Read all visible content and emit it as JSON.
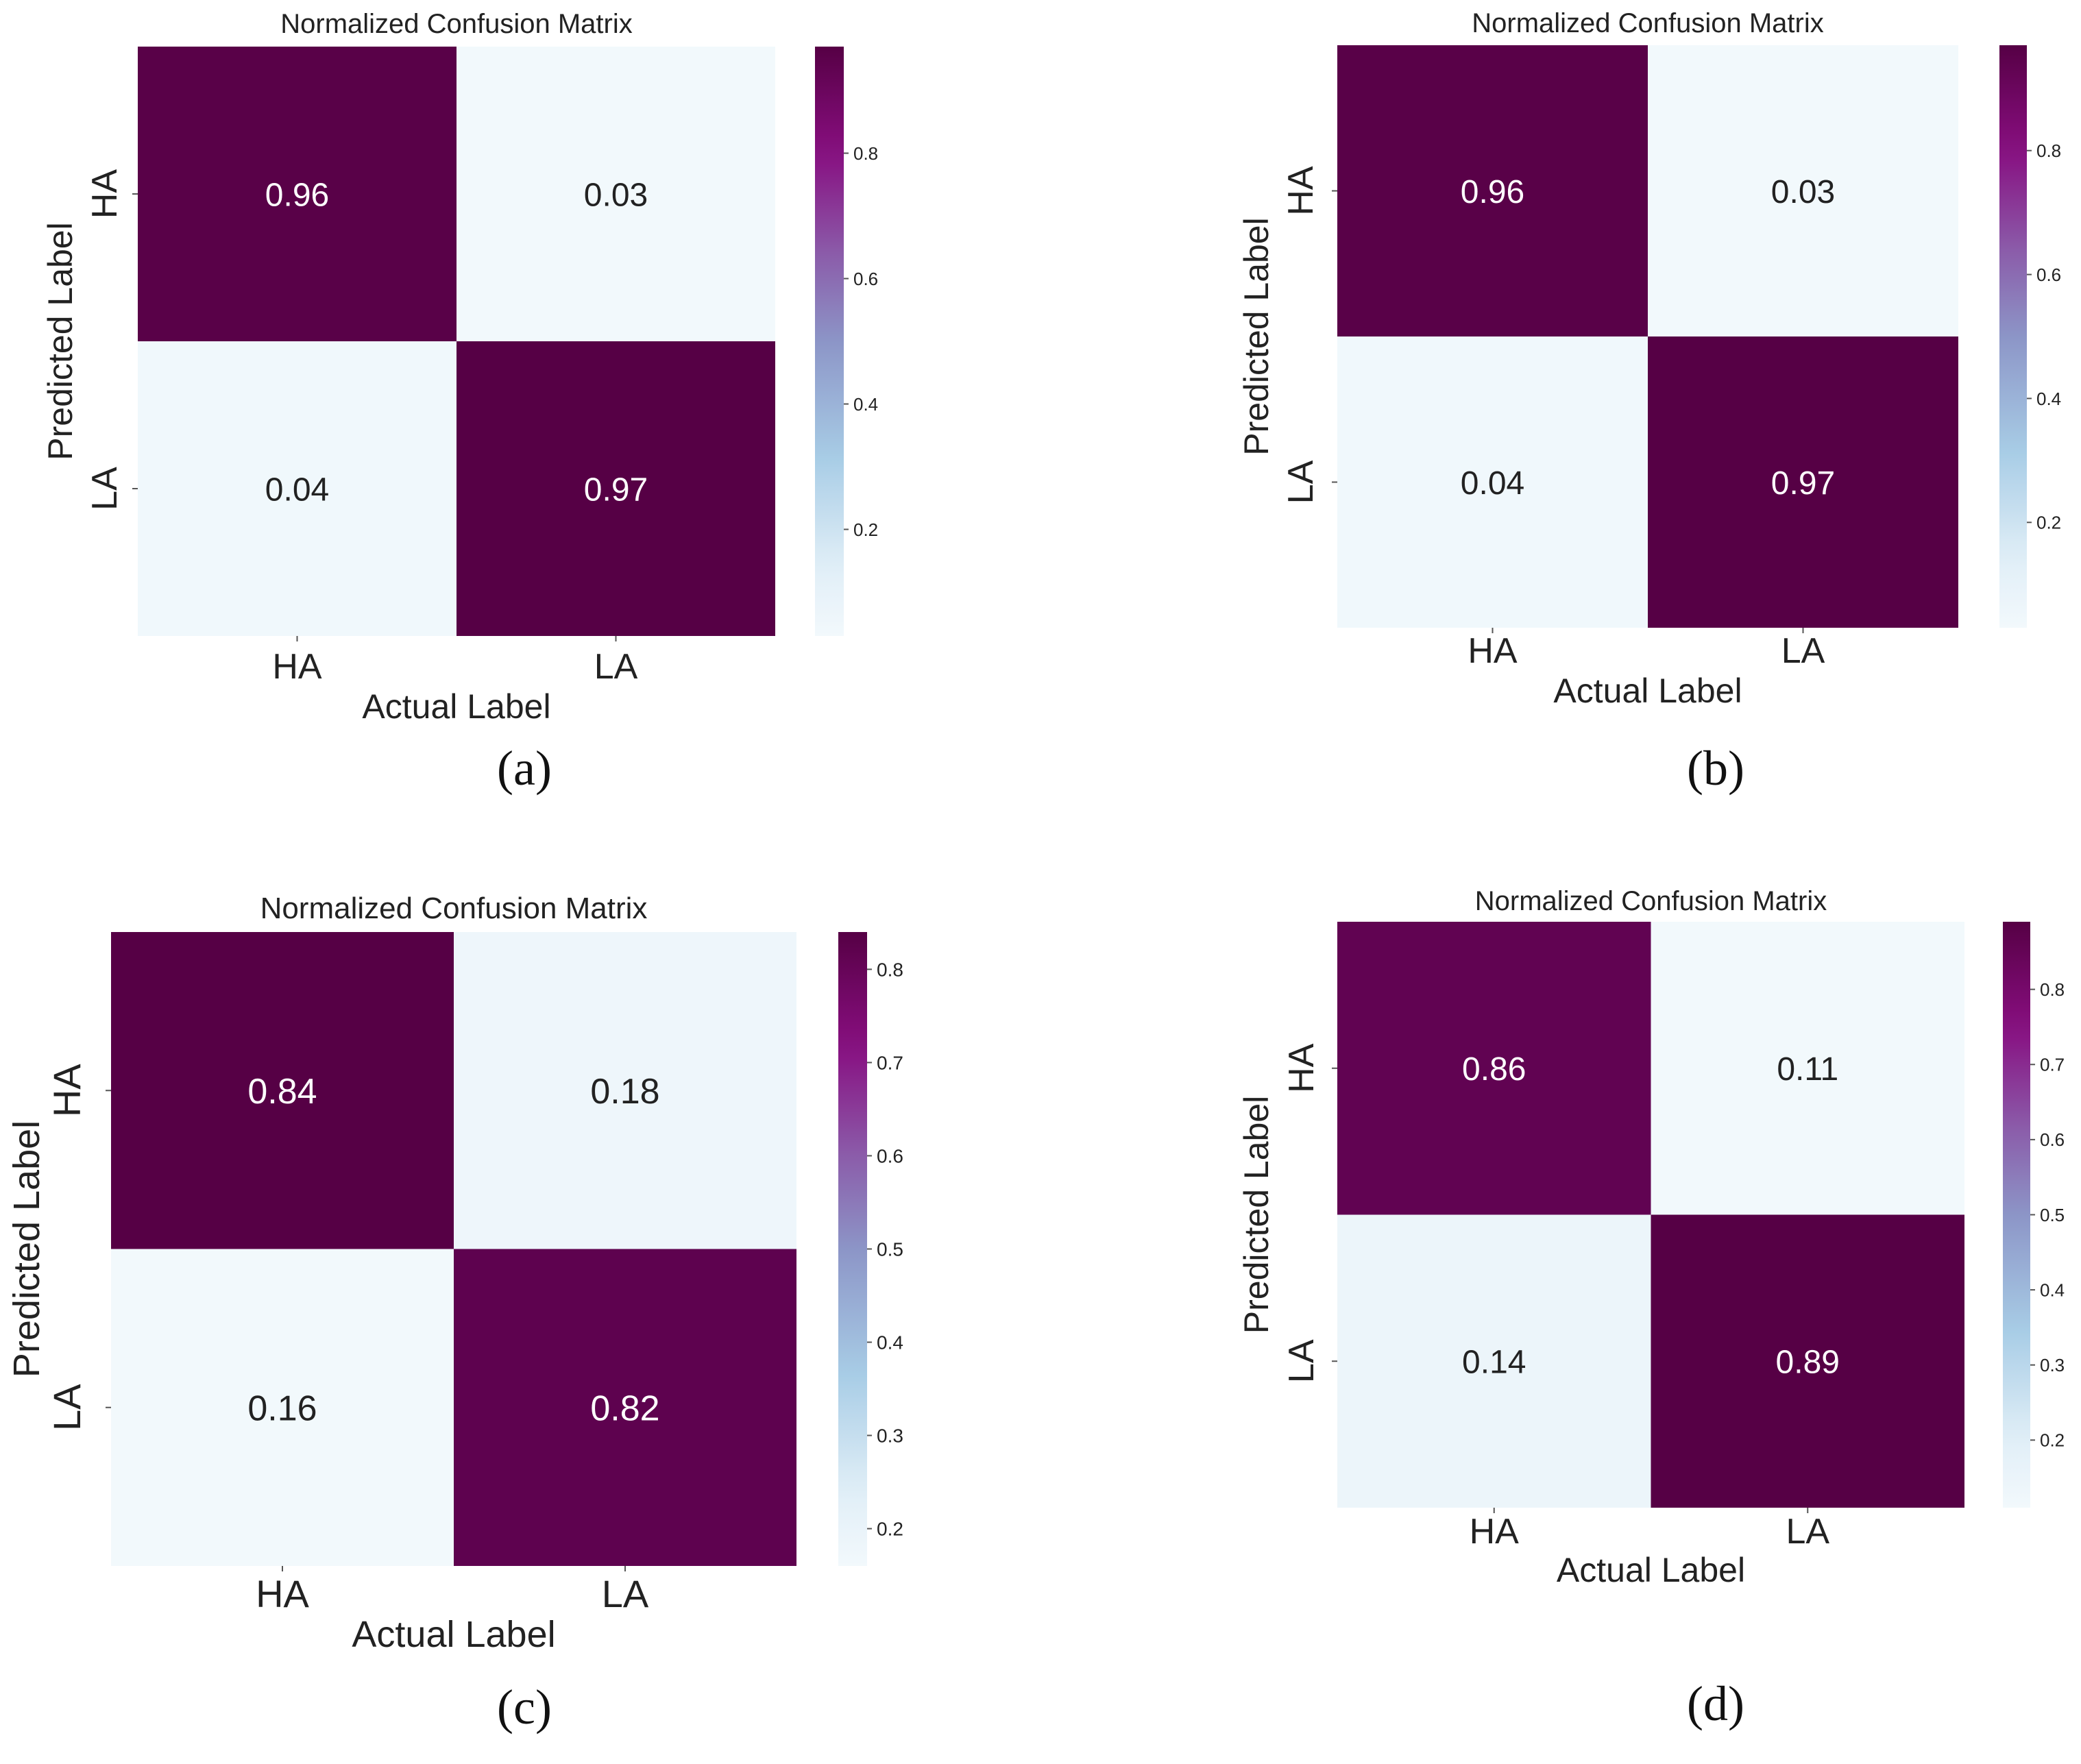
{
  "figure": {
    "colorscale": [
      {
        "t": 0.0,
        "color": "#f2f9fc"
      },
      {
        "t": 0.12,
        "color": "#e0eef7"
      },
      {
        "t": 0.3,
        "color": "#a8cde6"
      },
      {
        "t": 0.5,
        "color": "#8c95c7"
      },
      {
        "t": 0.65,
        "color": "#8b5ba9"
      },
      {
        "t": 0.82,
        "color": "#880e80"
      },
      {
        "t": 1.0,
        "color": "#560045"
      }
    ],
    "text_dark": "#222222",
    "text_light": "#ffffff"
  },
  "chart_data": [
    {
      "type": "heatmap",
      "panel": "(a)",
      "title": "Normalized Confusion Matrix",
      "xlabel": "Actual Label",
      "ylabel": "Predicted Label",
      "x_categories": [
        "HA",
        "LA"
      ],
      "y_categories": [
        "HA",
        "LA"
      ],
      "values": [
        [
          0.96,
          0.03
        ],
        [
          0.04,
          0.97
        ]
      ],
      "colorbar": {
        "range": [
          0.03,
          0.97
        ],
        "ticks": [
          0.2,
          0.4,
          0.6,
          0.8
        ],
        "tick_labels": [
          "0.2",
          "0.4",
          "0.6",
          "0.8"
        ]
      }
    },
    {
      "type": "heatmap",
      "panel": "(b)",
      "title": "Normalized Confusion Matrix",
      "xlabel": "Actual Label",
      "ylabel": "Predicted Label",
      "x_categories": [
        "HA",
        "LA"
      ],
      "y_categories": [
        "HA",
        "LA"
      ],
      "values": [
        [
          0.96,
          0.03
        ],
        [
          0.04,
          0.97
        ]
      ],
      "colorbar": {
        "range": [
          0.03,
          0.97
        ],
        "ticks": [
          0.2,
          0.4,
          0.6,
          0.8
        ],
        "tick_labels": [
          "0.2",
          "0.4",
          "0.6",
          "0.8"
        ]
      }
    },
    {
      "type": "heatmap",
      "panel": "(c)",
      "title": "Normalized Confusion Matrix",
      "xlabel": "Actual Label",
      "ylabel": "Predicted Label",
      "x_categories": [
        "HA",
        "LA"
      ],
      "y_categories": [
        "HA",
        "LA"
      ],
      "values": [
        [
          0.84,
          0.18
        ],
        [
          0.16,
          0.82
        ]
      ],
      "colorbar": {
        "range": [
          0.16,
          0.84
        ],
        "ticks": [
          0.2,
          0.3,
          0.4,
          0.5,
          0.6,
          0.7,
          0.8
        ],
        "tick_labels": [
          "0.2",
          "0.3",
          "0.4",
          "0.5",
          "0.6",
          "0.7",
          "0.8"
        ]
      }
    },
    {
      "type": "heatmap",
      "panel": "(d)",
      "title": "Normalized Confusion Matrix",
      "xlabel": "Actual Label",
      "ylabel": "Predicted Label",
      "x_categories": [
        "HA",
        "LA"
      ],
      "y_categories": [
        "HA",
        "LA"
      ],
      "values": [
        [
          0.86,
          0.11
        ],
        [
          0.14,
          0.89
        ]
      ],
      "colorbar": {
        "range": [
          0.11,
          0.89
        ],
        "ticks": [
          0.2,
          0.3,
          0.4,
          0.5,
          0.6,
          0.7,
          0.8
        ],
        "tick_labels": [
          "0.2",
          "0.3",
          "0.4",
          "0.5",
          "0.6",
          "0.7",
          "0.8"
        ]
      }
    }
  ]
}
